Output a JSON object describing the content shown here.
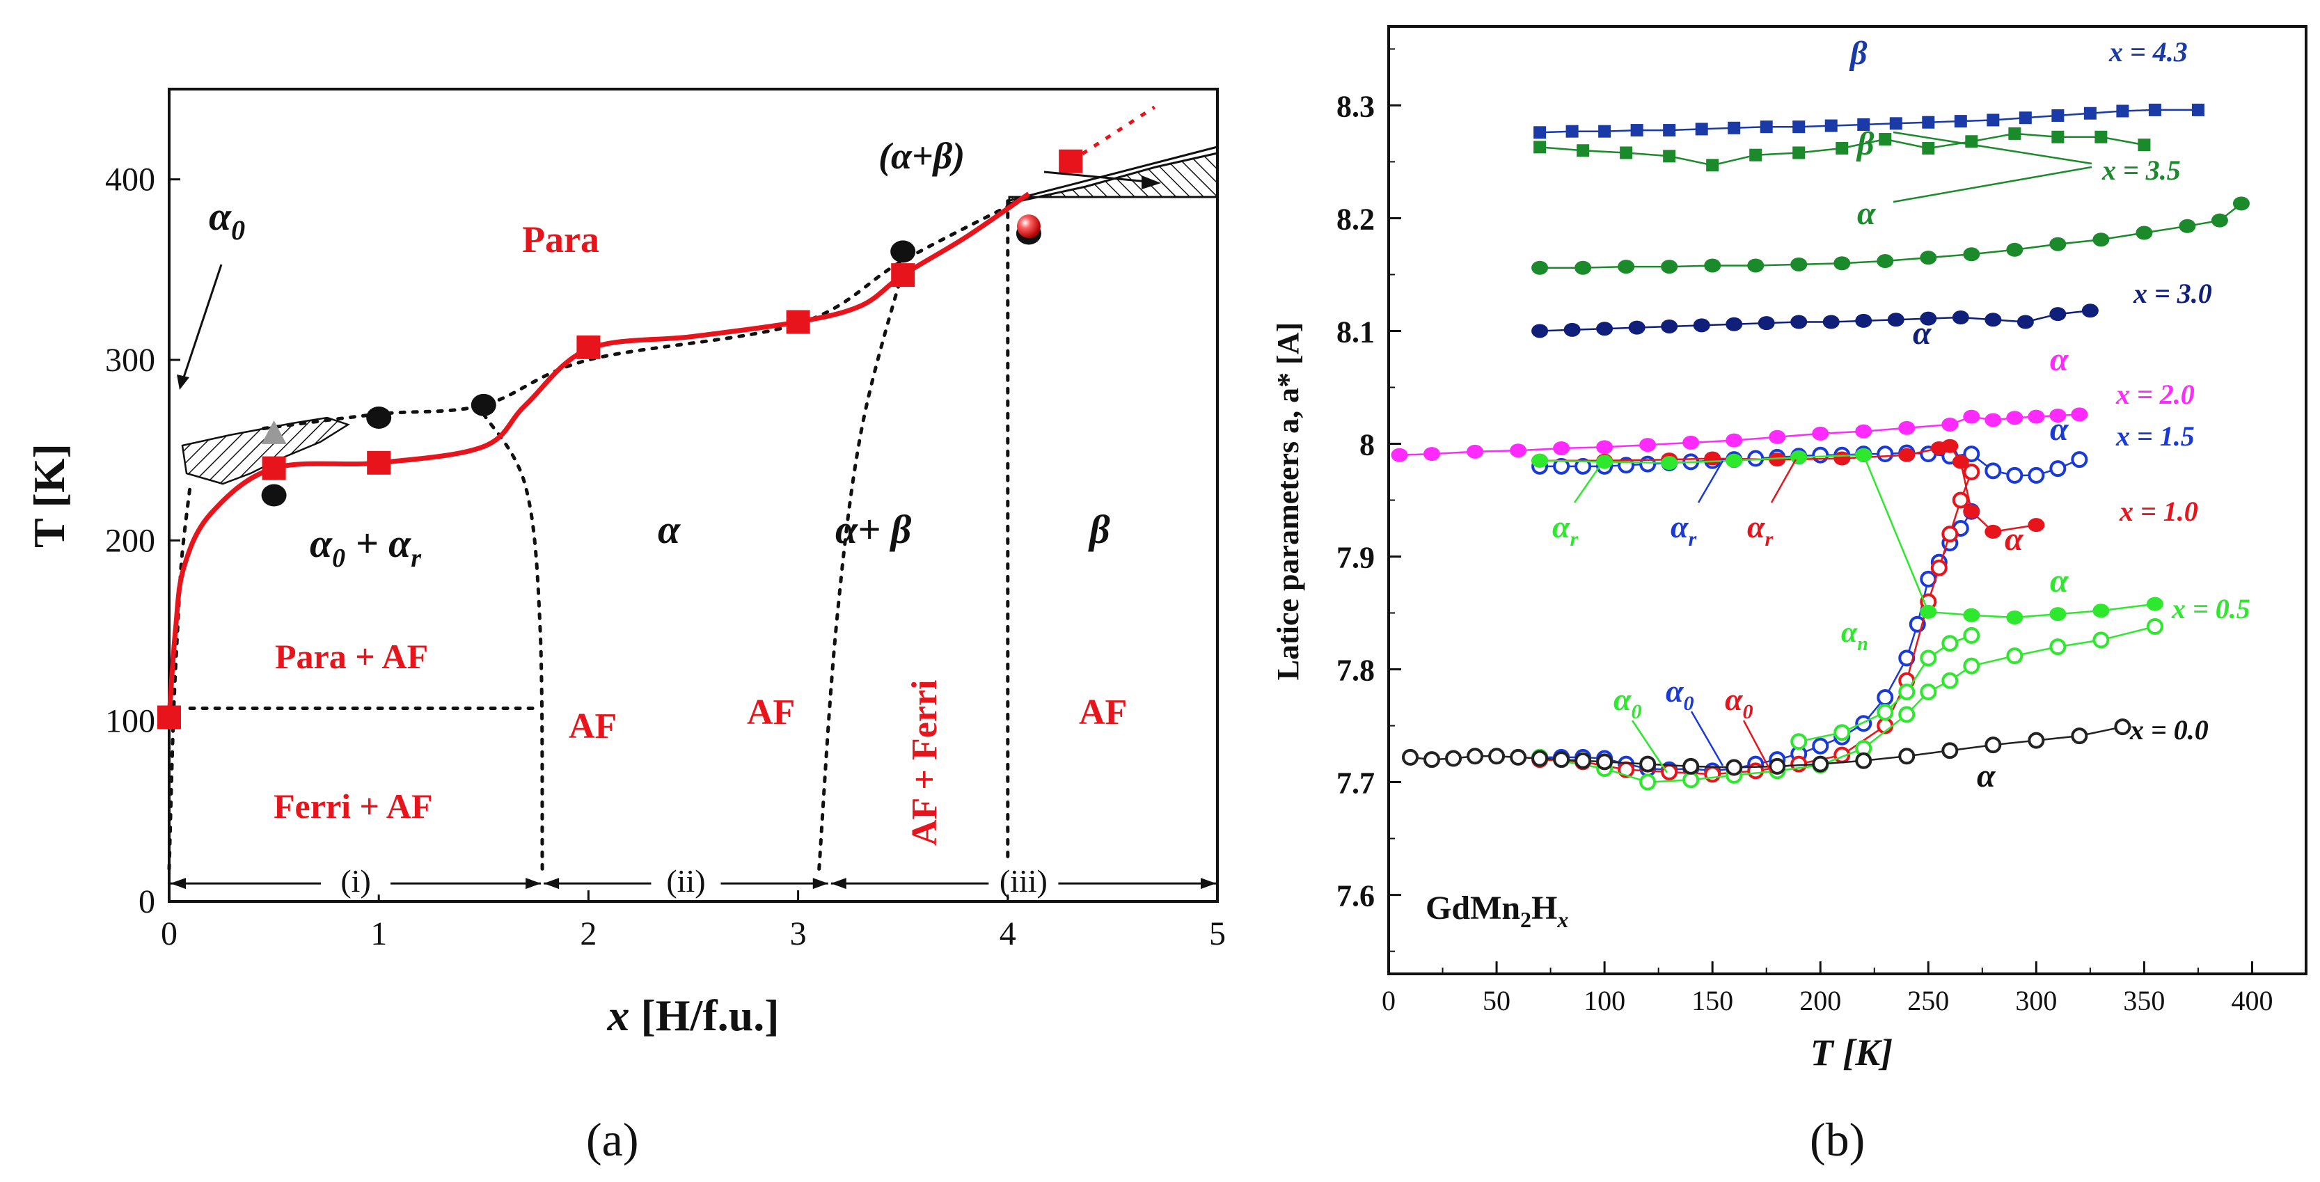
{
  "panels": {
    "a": {
      "caption": "(a)",
      "xlabel_x": "x",
      "xlabel_units": " [H/f.u.]",
      "ylabel": "T [K]",
      "region_labels": {
        "para": "Para",
        "alpha0_top": "α",
        "alpha0_sub": "0",
        "alpha_beta_top": "(α+β)",
        "a0_ar_a": "α",
        "a0_ar_sub0": "0",
        "a0_ar_plus": " + α",
        "a0_ar_subr": "r",
        "alpha": "α",
        "alpha_plus_beta": "α+ β",
        "beta": "β",
        "para_af": "Para + AF",
        "ferri_af": "Ferri + AF",
        "af1": "AF",
        "af2": "AF",
        "af3": "AF",
        "af_ferri": "AF + Ferri",
        "range_i": "(i)",
        "range_ii": "(ii)",
        "range_iii": "(iii)"
      }
    },
    "b": {
      "caption": "(b)",
      "xlabel": "T [K]",
      "ylabel": "Latice parameters a, a* [A]",
      "compound_main": "GdMn",
      "compound_sub2": "2",
      "compound_h": "H",
      "compound_subx": "x",
      "x_labels": [
        "x = 4.3",
        "x = 3.5",
        "x = 3.0",
        "x = 2.0",
        "x = 1.5",
        "x = 1.0",
        "x = 0.5",
        "x = 0.0"
      ],
      "phase_labels": {
        "beta43": "β",
        "beta35": "β",
        "alpha35": "α",
        "alpha30": "α",
        "alpha20": "α",
        "alpha15": "α",
        "ar": "α",
        "ar_sub": "r",
        "alpha10": "α",
        "alpha05": "α",
        "an": "α",
        "an_sub": "n",
        "a0": "α",
        "a0_sub": "0",
        "alpha00": "α"
      }
    }
  },
  "chart_data": [
    {
      "type": "scatter",
      "title": "",
      "xlabel": "x [H/f.u.]",
      "ylabel": "T [K]",
      "xlim": [
        0,
        5
      ],
      "ylim": [
        0,
        450
      ],
      "xticks": [
        0,
        1,
        2,
        3,
        4,
        5
      ],
      "yticks": [
        0,
        100,
        200,
        300,
        400
      ],
      "series": [
        {
          "color": "#e8141b",
          "marker": "square",
          "x": [
            0.0,
            0.5,
            1.0,
            2.0,
            3.0,
            3.5,
            4.3
          ],
          "y": [
            102,
            240,
            243,
            307,
            321,
            347,
            410
          ]
        },
        {
          "color": "#111111",
          "marker": "circle",
          "x": [
            0.5,
            1.0,
            1.5,
            3.5,
            4.1
          ],
          "y": [
            225,
            268,
            275,
            360,
            370
          ]
        },
        {
          "color": "#e8141b",
          "marker": "sphere",
          "x": [
            4.1
          ],
          "y": [
            374
          ]
        },
        {
          "color": "#999999",
          "marker": "triangle",
          "x": [
            0.5
          ],
          "y": [
            258
          ]
        }
      ],
      "red_curve": {
        "x": [
          0.0,
          0.03,
          0.07,
          0.2,
          0.5,
          1.0,
          1.5,
          1.7,
          2.0,
          2.5,
          3.0,
          3.3,
          3.5,
          3.8,
          4.1
        ],
        "y": [
          102,
          150,
          185,
          215,
          240,
          243,
          252,
          275,
          306,
          313,
          321,
          330,
          347,
          368,
          392
        ]
      },
      "boundaries": {
        "para_top": {
          "x": [
            0.45,
            1.0,
            1.5,
            2.0,
            3.0,
            3.5,
            4.05
          ],
          "y": [
            262,
            270,
            275,
            300,
            320,
            355,
            388
          ]
        },
        "region_i_edge": {
          "x": [
            1.5,
            1.7,
            1.77,
            1.78
          ],
          "y": [
            270,
            230,
            150,
            18
          ]
        },
        "region_ii_edge": {
          "x": [
            3.1,
            3.18,
            3.3,
            3.5
          ],
          "y": [
            18,
            150,
            260,
            350
          ]
        },
        "region_iii_edge": {
          "x": [
            4.0,
            4.0
          ],
          "y": [
            18,
            388
          ]
        },
        "para_af_line": {
          "x": [
            0.1,
            1.75
          ],
          "y": [
            107,
            107
          ]
        },
        "left_edge": {
          "x": [
            0.0,
            0.02,
            0.04,
            0.06,
            0.1
          ],
          "y": [
            18,
            100,
            150,
            190,
            230
          ]
        },
        "alpha_beta_top": {
          "x": [
            4.0,
            4.5,
            5.0
          ],
          "y": [
            388,
            403,
            418
          ]
        },
        "red_dotted": {
          "x": [
            4.3,
            4.7
          ],
          "y": [
            410,
            440
          ]
        }
      },
      "ranges": [
        {
          "from": 0,
          "to": 1.78
        },
        {
          "from": 1.78,
          "to": 3.15
        },
        {
          "from": 3.15,
          "to": 4.0
        },
        {
          "from": 4.0,
          "to": 5.0
        }
      ]
    },
    {
      "type": "scatter",
      "title": "",
      "xlabel": "T [K]",
      "ylabel": "Latice parameters a, a* [A]",
      "xlim": [
        0,
        425
      ],
      "ylim": [
        7.53,
        8.37
      ],
      "xticks": [
        0,
        50,
        100,
        150,
        200,
        250,
        300,
        350,
        400
      ],
      "yticks": [
        7.6,
        7.7,
        7.8,
        7.9,
        8.0,
        8.1,
        8.2,
        8.3
      ],
      "ytick_labels": [
        "7.6",
        "7.7",
        "7.8",
        "7.9",
        "8",
        "8.1",
        "8.2",
        "8.3"
      ],
      "series": [
        {
          "name": "x = 4.3",
          "color": "#1a3aa8",
          "marker": "square",
          "T": [
            70,
            85,
            100,
            115,
            130,
            145,
            160,
            175,
            190,
            205,
            220,
            235,
            250,
            265,
            280,
            295,
            310,
            325,
            340,
            355,
            375
          ],
          "a": [
            8.276,
            8.277,
            8.277,
            8.278,
            8.278,
            8.279,
            8.28,
            8.281,
            8.281,
            8.282,
            8.283,
            8.284,
            8.285,
            8.286,
            8.287,
            8.289,
            8.291,
            8.293,
            8.295,
            8.296,
            8.296
          ]
        },
        {
          "name": "x = 3.5",
          "color": "#1a8a2a",
          "marker": "square",
          "T": [
            70,
            90,
            110,
            130,
            150,
            170,
            190,
            210,
            230,
            250,
            270,
            290,
            310,
            330,
            350
          ],
          "a": [
            8.263,
            8.26,
            8.258,
            8.255,
            8.247,
            8.256,
            8.258,
            8.262,
            8.27,
            8.262,
            8.268,
            8.275,
            8.272,
            8.272,
            8.265
          ]
        },
        {
          "name": "x = 3.5",
          "color": "#1a8a2a",
          "marker": "circle",
          "T": [
            70,
            90,
            110,
            130,
            150,
            170,
            190,
            210,
            230,
            250,
            270,
            290,
            310,
            330,
            350,
            370,
            385,
            395
          ],
          "a": [
            8.156,
            8.156,
            8.157,
            8.157,
            8.158,
            8.158,
            8.159,
            8.16,
            8.162,
            8.165,
            8.168,
            8.172,
            8.177,
            8.181,
            8.187,
            8.193,
            8.198,
            8.213
          ]
        },
        {
          "name": "x = 3.0",
          "color": "#0f1f7a",
          "marker": "circle",
          "T": [
            70,
            85,
            100,
            115,
            130,
            145,
            160,
            175,
            190,
            205,
            220,
            235,
            250,
            265,
            280,
            295,
            310,
            325
          ],
          "a": [
            8.1,
            8.101,
            8.102,
            8.103,
            8.104,
            8.105,
            8.106,
            8.107,
            8.108,
            8.108,
            8.109,
            8.11,
            8.111,
            8.112,
            8.11,
            8.108,
            8.115,
            8.118
          ]
        },
        {
          "name": "x = 2.0",
          "color": "#ff2aff",
          "marker": "circle",
          "T": [
            5,
            20,
            40,
            60,
            80,
            100,
            120,
            140,
            160,
            180,
            200,
            220,
            240,
            260,
            270,
            280,
            290,
            300,
            310,
            320
          ],
          "a": [
            7.99,
            7.991,
            7.993,
            7.994,
            7.996,
            7.997,
            7.999,
            8.001,
            8.003,
            8.006,
            8.009,
            8.011,
            8.014,
            8.017,
            8.024,
            8.021,
            8.023,
            8.024,
            8.025,
            8.026
          ]
        },
        {
          "name": "x = 1.5",
          "color": "#1a3ad8",
          "marker": "open-circle",
          "T": [
            70,
            80,
            90,
            100,
            110,
            120,
            130,
            140,
            150,
            160,
            170,
            180,
            190,
            200,
            210,
            220,
            230,
            240,
            250,
            260,
            270,
            280,
            290,
            300,
            310,
            320
          ],
          "a": [
            7.98,
            7.98,
            7.98,
            7.98,
            7.981,
            7.982,
            7.983,
            7.984,
            7.985,
            7.986,
            7.987,
            7.988,
            7.989,
            7.99,
            7.99,
            7.991,
            7.991,
            7.992,
            7.991,
            7.989,
            7.991,
            7.976,
            7.972,
            7.972,
            7.978,
            7.986
          ]
        },
        {
          "name": "x = 1.0",
          "color": "#e8141b",
          "marker": "circle",
          "T": [
            70,
            100,
            130,
            150,
            180,
            210,
            240,
            255,
            260,
            265,
            270,
            280,
            300
          ],
          "a": [
            7.985,
            7.985,
            7.986,
            7.987,
            7.986,
            7.987,
            7.99,
            7.996,
            7.998,
            7.984,
            7.94,
            7.922,
            7.928
          ]
        },
        {
          "name": "x = 0.5",
          "color": "#2ee82e",
          "marker": "circle",
          "T": [
            70,
            100,
            130,
            160,
            190,
            220,
            250,
            270,
            290,
            310,
            330,
            355
          ],
          "a": [
            7.985,
            7.984,
            7.983,
            7.985,
            7.988,
            7.99,
            7.851,
            7.848,
            7.846,
            7.849,
            7.852,
            7.858
          ]
        },
        {
          "name": "x = 0.5",
          "color": "#2ee82e",
          "marker": "open-circle",
          "T": [
            70,
            100,
            120,
            140,
            160,
            180,
            200,
            220,
            240,
            250,
            260,
            270,
            290,
            310,
            330,
            355
          ],
          "a": [
            7.722,
            7.712,
            7.7,
            7.702,
            7.706,
            7.71,
            7.715,
            7.73,
            7.76,
            7.78,
            7.79,
            7.803,
            7.812,
            7.82,
            7.826,
            7.838
          ]
        },
        {
          "name": "x = 0.0",
          "color": "#222222",
          "marker": "open-circle",
          "T": [
            10,
            20,
            30,
            40,
            50,
            60,
            70,
            80,
            90,
            100,
            120,
            140,
            160,
            180,
            200,
            220,
            240,
            260,
            280,
            300,
            320,
            340
          ],
          "a": [
            7.722,
            7.72,
            7.721,
            7.723,
            7.723,
            7.722,
            7.721,
            7.72,
            7.719,
            7.718,
            7.716,
            7.714,
            7.713,
            7.714,
            7.716,
            7.719,
            7.723,
            7.728,
            7.733,
            7.737,
            7.741,
            7.749
          ]
        }
      ],
      "transitions": [
        {
          "color": "#1a3ad8",
          "T": [
            70,
            80,
            90,
            100,
            110,
            120,
            130,
            140,
            150,
            160,
            170,
            180,
            190,
            200,
            210,
            220,
            230,
            240,
            245,
            250,
            255,
            260,
            265,
            270
          ],
          "a": [
            7.722,
            7.722,
            7.722,
            7.721,
            7.716,
            7.712,
            7.711,
            7.712,
            7.71,
            7.712,
            7.716,
            7.72,
            7.725,
            7.732,
            7.74,
            7.752,
            7.775,
            7.81,
            7.84,
            7.88,
            7.895,
            7.912,
            7.925,
            7.94
          ]
        },
        {
          "color": "#e8141b",
          "T": [
            70,
            90,
            110,
            130,
            150,
            170,
            190,
            210,
            230,
            240,
            250,
            255,
            260,
            265,
            270
          ],
          "a": [
            7.72,
            7.718,
            7.711,
            7.709,
            7.707,
            7.71,
            7.716,
            7.724,
            7.75,
            7.79,
            7.86,
            7.89,
            7.92,
            7.95,
            7.975
          ]
        },
        {
          "color": "#2ee82e",
          "T": [
            190,
            210,
            230,
            240,
            250,
            260,
            270
          ],
          "a": [
            7.736,
            7.744,
            7.762,
            7.78,
            7.81,
            7.823,
            7.83
          ]
        }
      ]
    }
  ]
}
